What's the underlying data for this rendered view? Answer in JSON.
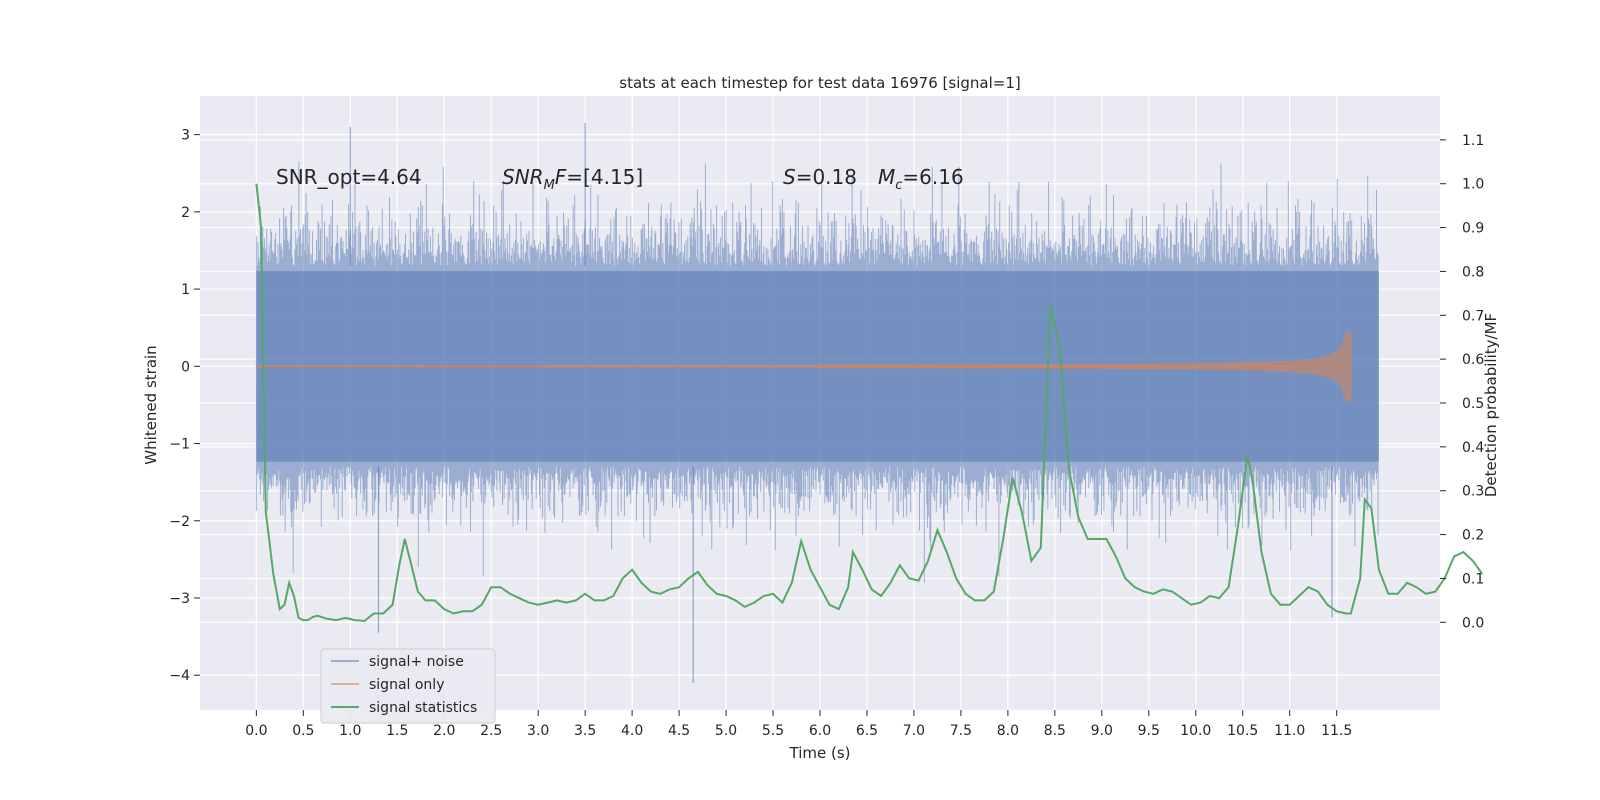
{
  "chart_data": {
    "type": "line",
    "title": "stats at each timestep for test data 16976 [signal=1]",
    "xlabel": "Time (s)",
    "ylabel_left": "Whitened strain",
    "ylabel_right": "Detection probability/MF",
    "xlim": [
      -0.6,
      12.6
    ],
    "ylim_left": [
      -4.45,
      3.5
    ],
    "ylim_right": [
      -0.2,
      1.2
    ],
    "x_ticks": [
      0.0,
      0.5,
      1.0,
      1.5,
      2.0,
      2.5,
      3.0,
      3.5,
      4.0,
      4.5,
      5.0,
      5.5,
      6.0,
      6.5,
      7.0,
      7.5,
      8.0,
      8.5,
      9.0,
      9.5,
      10.0,
      10.5,
      11.0,
      11.5
    ],
    "x_tick_labels": [
      "0.0",
      "0.5",
      "1.0",
      "1.5",
      "2.0",
      "2.5",
      "3.0",
      "3.5",
      "4.0",
      "4.5",
      "5.0",
      "5.5",
      "6.0",
      "6.5",
      "7.0",
      "7.5",
      "8.0",
      "8.5",
      "9.0",
      "9.5",
      "10.0",
      "10.5",
      "11.0",
      "11.5"
    ],
    "y_ticks_left": [
      3,
      2,
      1,
      0,
      -1,
      -2,
      -3,
      -4
    ],
    "y_tick_labels_left": [
      "3",
      "2",
      "1",
      "0",
      "−1",
      "−2",
      "−3",
      "−4"
    ],
    "y_ticks_right": [
      1.1,
      1.0,
      0.9,
      0.8,
      0.7,
      0.6,
      0.5,
      0.4,
      0.3,
      0.2,
      0.1,
      0.0
    ],
    "y_tick_labels_right": [
      "1.1",
      "1.0",
      "0.9",
      "0.8",
      "0.7",
      "0.6",
      "0.5",
      "0.4",
      "0.3",
      "0.2",
      "0.1",
      "0.0"
    ],
    "grid": true,
    "legend_position": "lower-left",
    "annotations": [
      {
        "text": "SNR_opt=4.64",
        "x": 0.2,
        "y": 2.45
      },
      {
        "text": "SNRMF=[4.15]",
        "x": 2.6,
        "y": 2.45
      },
      {
        "text": "S=0.18",
        "x": 5.6,
        "y": 2.45
      },
      {
        "text": "Mc=6.16",
        "x": 6.6,
        "y": 2.45
      }
    ],
    "series": [
      {
        "name": "signal+ noise",
        "color": "#4c72b0",
        "axis": "left",
        "style": "noise_band",
        "t_range": [
          0.0,
          11.95
        ],
        "typical_amplitude": 1.3,
        "max_value": 3.15,
        "min_value": -4.1,
        "notable_spikes": [
          {
            "t": 1.0,
            "v": 3.1
          },
          {
            "t": 3.5,
            "v": 3.15
          },
          {
            "t": 4.65,
            "v": -4.1
          },
          {
            "t": 1.3,
            "v": -3.45
          },
          {
            "t": 11.45,
            "v": -3.25
          }
        ]
      },
      {
        "name": "signal only",
        "color": "#dd8452",
        "axis": "left",
        "style": "chirp",
        "t_range": [
          0.0,
          11.65
        ],
        "start_amplitude": 0.005,
        "end_amplitude": 0.45,
        "merger_time": 11.65
      },
      {
        "name": "signal statistics",
        "color": "#55a868",
        "axis": "right",
        "style": "line",
        "points": [
          [
            0.0,
            1.0
          ],
          [
            0.05,
            0.9
          ],
          [
            0.1,
            0.25
          ],
          [
            0.13,
            0.2
          ],
          [
            0.18,
            0.11
          ],
          [
            0.25,
            0.03
          ],
          [
            0.3,
            0.04
          ],
          [
            0.35,
            0.09
          ],
          [
            0.4,
            0.06
          ],
          [
            0.45,
            0.01
          ],
          [
            0.5,
            0.005
          ],
          [
            0.55,
            0.005
          ],
          [
            0.6,
            0.012
          ],
          [
            0.65,
            0.015
          ],
          [
            0.75,
            0.008
          ],
          [
            0.85,
            0.005
          ],
          [
            0.95,
            0.01
          ],
          [
            1.05,
            0.005
          ],
          [
            1.15,
            0.003
          ],
          [
            1.25,
            0.02
          ],
          [
            1.35,
            0.02
          ],
          [
            1.45,
            0.04
          ],
          [
            1.52,
            0.13
          ],
          [
            1.58,
            0.19
          ],
          [
            1.65,
            0.13
          ],
          [
            1.72,
            0.07
          ],
          [
            1.8,
            0.05
          ],
          [
            1.9,
            0.05
          ],
          [
            2.0,
            0.03
          ],
          [
            2.1,
            0.02
          ],
          [
            2.2,
            0.025
          ],
          [
            2.3,
            0.025
          ],
          [
            2.4,
            0.04
          ],
          [
            2.5,
            0.08
          ],
          [
            2.6,
            0.08
          ],
          [
            2.7,
            0.065
          ],
          [
            2.8,
            0.055
          ],
          [
            2.9,
            0.045
          ],
          [
            3.0,
            0.04
          ],
          [
            3.1,
            0.045
          ],
          [
            3.2,
            0.05
          ],
          [
            3.3,
            0.045
          ],
          [
            3.4,
            0.05
          ],
          [
            3.5,
            0.065
          ],
          [
            3.6,
            0.05
          ],
          [
            3.7,
            0.05
          ],
          [
            3.8,
            0.06
          ],
          [
            3.9,
            0.1
          ],
          [
            4.0,
            0.12
          ],
          [
            4.1,
            0.09
          ],
          [
            4.2,
            0.07
          ],
          [
            4.3,
            0.065
          ],
          [
            4.4,
            0.075
          ],
          [
            4.5,
            0.08
          ],
          [
            4.6,
            0.1
          ],
          [
            4.7,
            0.115
          ],
          [
            4.8,
            0.085
          ],
          [
            4.9,
            0.065
          ],
          [
            5.0,
            0.06
          ],
          [
            5.1,
            0.05
          ],
          [
            5.2,
            0.035
          ],
          [
            5.3,
            0.045
          ],
          [
            5.4,
            0.06
          ],
          [
            5.5,
            0.065
          ],
          [
            5.6,
            0.045
          ],
          [
            5.7,
            0.09
          ],
          [
            5.8,
            0.185
          ],
          [
            5.9,
            0.12
          ],
          [
            6.0,
            0.08
          ],
          [
            6.1,
            0.04
          ],
          [
            6.2,
            0.03
          ],
          [
            6.3,
            0.08
          ],
          [
            6.35,
            0.16
          ],
          [
            6.45,
            0.12
          ],
          [
            6.55,
            0.075
          ],
          [
            6.65,
            0.06
          ],
          [
            6.75,
            0.09
          ],
          [
            6.85,
            0.13
          ],
          [
            6.95,
            0.1
          ],
          [
            7.05,
            0.095
          ],
          [
            7.15,
            0.14
          ],
          [
            7.25,
            0.21
          ],
          [
            7.35,
            0.16
          ],
          [
            7.45,
            0.1
          ],
          [
            7.55,
            0.065
          ],
          [
            7.65,
            0.05
          ],
          [
            7.75,
            0.05
          ],
          [
            7.85,
            0.07
          ],
          [
            7.95,
            0.19
          ],
          [
            8.05,
            0.33
          ],
          [
            8.15,
            0.25
          ],
          [
            8.25,
            0.14
          ],
          [
            8.35,
            0.17
          ],
          [
            8.45,
            0.72
          ],
          [
            8.55,
            0.63
          ],
          [
            8.65,
            0.35
          ],
          [
            8.75,
            0.24
          ],
          [
            8.85,
            0.19
          ],
          [
            8.95,
            0.19
          ],
          [
            9.05,
            0.19
          ],
          [
            9.15,
            0.15
          ],
          [
            9.25,
            0.1
          ],
          [
            9.35,
            0.08
          ],
          [
            9.45,
            0.07
          ],
          [
            9.55,
            0.065
          ],
          [
            9.65,
            0.075
          ],
          [
            9.75,
            0.07
          ],
          [
            9.85,
            0.055
          ],
          [
            9.95,
            0.04
          ],
          [
            10.05,
            0.045
          ],
          [
            10.15,
            0.06
          ],
          [
            10.25,
            0.055
          ],
          [
            10.35,
            0.08
          ],
          [
            10.45,
            0.22
          ],
          [
            10.55,
            0.38
          ],
          [
            10.6,
            0.33
          ],
          [
            10.7,
            0.16
          ],
          [
            10.8,
            0.065
          ],
          [
            10.9,
            0.04
          ],
          [
            11.0,
            0.04
          ],
          [
            11.1,
            0.06
          ],
          [
            11.2,
            0.08
          ],
          [
            11.3,
            0.07
          ],
          [
            11.4,
            0.04
          ],
          [
            11.5,
            0.025
          ],
          [
            11.6,
            0.02
          ],
          [
            11.65,
            0.02
          ],
          [
            11.75,
            0.1
          ],
          [
            11.8,
            0.28
          ],
          [
            11.87,
            0.26
          ],
          [
            11.95,
            0.12
          ],
          [
            12.05,
            0.065
          ],
          [
            12.15,
            0.065
          ],
          [
            12.25,
            0.09
          ],
          [
            12.3,
            0.085
          ],
          [
            12.35,
            0.08
          ],
          [
            12.45,
            0.065
          ],
          [
            12.55,
            0.07
          ],
          [
            12.65,
            0.1
          ],
          [
            12.75,
            0.15
          ],
          [
            12.85,
            0.16
          ],
          [
            12.95,
            0.14
          ],
          [
            13.05,
            0.11
          ]
        ]
      }
    ]
  }
}
